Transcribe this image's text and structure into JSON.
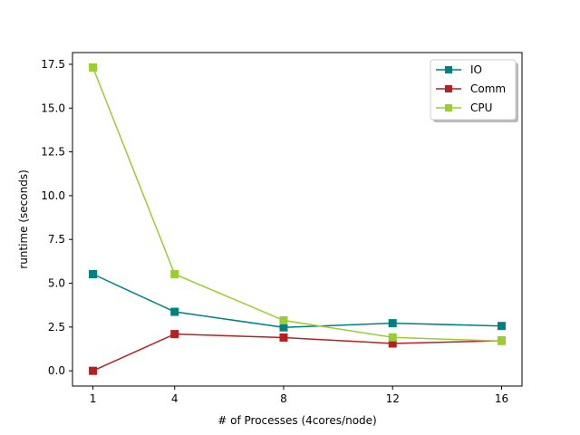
{
  "chart_data": {
    "type": "line",
    "title": "",
    "xlabel": "# of Processes (4cores/node)",
    "ylabel": "runtime (seconds)",
    "categories": [
      "1",
      "4",
      "8",
      "12",
      "16"
    ],
    "ylim": [
      -0.87,
      18.17
    ],
    "yticks": [
      "0.0",
      "2.5",
      "5.0",
      "7.5",
      "10.0",
      "12.5",
      "15.0",
      "17.5"
    ],
    "ytick_values": [
      0,
      2.5,
      5,
      7.5,
      10,
      12.5,
      15,
      17.5
    ],
    "legend_position": "top-right",
    "grid": false,
    "series": [
      {
        "name": "IO",
        "color": "#008080",
        "marker": "square",
        "values": [
          5.52,
          3.37,
          2.48,
          2.72,
          2.56
        ]
      },
      {
        "name": "Comm",
        "color": "#b22222",
        "marker": "square",
        "values": [
          0.0,
          2.1,
          1.9,
          1.56,
          1.72
        ]
      },
      {
        "name": "CPU",
        "color": "#9acd32",
        "marker": "square",
        "values": [
          17.32,
          5.52,
          2.88,
          1.91,
          1.7
        ]
      }
    ]
  }
}
